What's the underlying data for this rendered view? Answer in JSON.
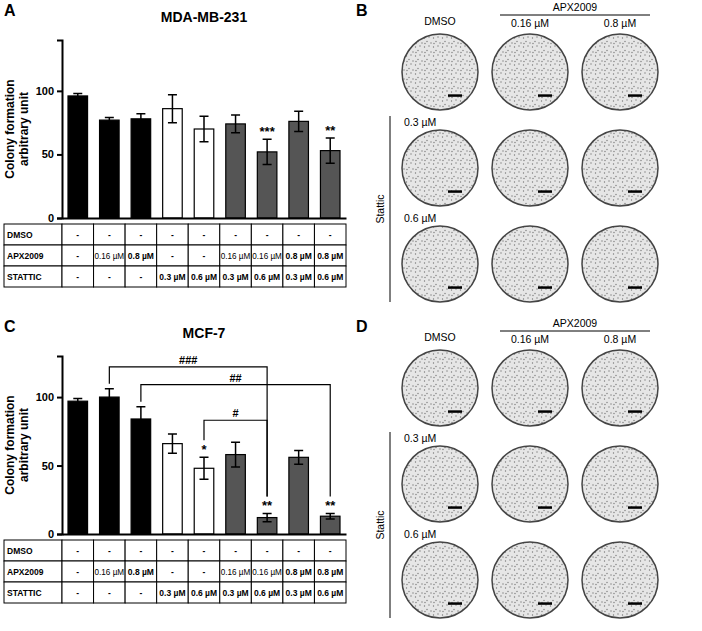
{
  "chart_data": [
    {
      "type": "bar",
      "panel_label": "A",
      "title": "MDA-MB-231",
      "y_label": "Colony formation arbitrary unit",
      "categories": [
        null,
        null,
        null,
        null,
        null,
        null,
        null,
        null,
        null
      ],
      "values": [
        96,
        77,
        78,
        86,
        70,
        74,
        52,
        76,
        53
      ],
      "errors": [
        2,
        2,
        4,
        11,
        10,
        7,
        10,
        8,
        10
      ],
      "colors": [
        "#000000",
        "#000000",
        "#000000",
        "#ffffff",
        "#ffffff",
        "#555555",
        "#555555",
        "#555555",
        "#555555"
      ],
      "ylim": [
        0,
        140
      ],
      "yticks": [
        0,
        50,
        100
      ],
      "table": [
        {
          "label": "DMSO",
          "cells": [
            "-",
            "-",
            "-",
            "-",
            "-",
            "-",
            "-",
            "-",
            "-"
          ]
        },
        {
          "label": "APX2009",
          "cells": [
            "-",
            "0.16 µM",
            "0.8 µM",
            "-",
            "-",
            "0.16 µM",
            "0.16 µM",
            "0.8 µM",
            "0.8 µM"
          ]
        },
        {
          "label": "STATTIC",
          "cells": [
            "-",
            "-",
            "-",
            "0.3 µM",
            "0.6 µM",
            "0.3 µM",
            "0.6 µM",
            "0.3 µM",
            "0.6 µM"
          ]
        }
      ],
      "annotations": [
        {
          "index": 6,
          "text": "***"
        },
        {
          "index": 8,
          "text": "**"
        }
      ]
    },
    {
      "type": "bar",
      "panel_label": "C",
      "title": "MCF-7",
      "y_label": "Colony formation arbitrary unit",
      "categories": [
        null,
        null,
        null,
        null,
        null,
        null,
        null,
        null,
        null
      ],
      "values": [
        97,
        100,
        84,
        66,
        48,
        58,
        12,
        56,
        13
      ],
      "errors": [
        2,
        6,
        9,
        7,
        8,
        9,
        3,
        5,
        2
      ],
      "colors": [
        "#000000",
        "#000000",
        "#000000",
        "#ffffff",
        "#ffffff",
        "#555555",
        "#555555",
        "#555555",
        "#555555"
      ],
      "ylim": [
        0,
        130
      ],
      "yticks": [
        0,
        50,
        100
      ],
      "table": [
        {
          "label": "DMSO",
          "cells": [
            "-",
            "-",
            "-",
            "-",
            "-",
            "-",
            "-",
            "-",
            "-"
          ]
        },
        {
          "label": "APX2009",
          "cells": [
            "-",
            "0.16 µM",
            "0.8 µM",
            "-",
            "-",
            "0.16 µM",
            "0.16 µM",
            "0.8 µM",
            "0.8 µM"
          ]
        },
        {
          "label": "STATTIC",
          "cells": [
            "-",
            "-",
            "-",
            "0.3 µM",
            "0.6 µM",
            "0.3 µM",
            "0.6 µM",
            "0.3 µM",
            "0.6 µM"
          ]
        }
      ],
      "annotations": [
        {
          "index": 4,
          "text": "*"
        },
        {
          "index": 6,
          "text": "**"
        },
        {
          "index": 8,
          "text": "**"
        }
      ],
      "brackets": [
        {
          "from": 1,
          "to": 6,
          "text": "###"
        },
        {
          "from": 2,
          "to": 8,
          "text": "##"
        },
        {
          "from": 4,
          "to": 6,
          "text": "#"
        }
      ]
    }
  ],
  "images": [
    {
      "panel_label": "B",
      "header": "DMSO",
      "column_group": "APX2009",
      "column_labels": [
        "0.16 µM",
        "0.8 µM"
      ],
      "row_group": "Stattic",
      "row_labels": [
        "0.3 µM",
        "0.6 µM"
      ]
    },
    {
      "panel_label": "D",
      "header": "DMSO",
      "column_group": "APX2009",
      "column_labels": [
        "0.16 µM",
        "0.8 µM"
      ],
      "row_group": "Stattic",
      "row_labels": [
        "0.3 µM",
        "0.6 µM"
      ]
    }
  ]
}
